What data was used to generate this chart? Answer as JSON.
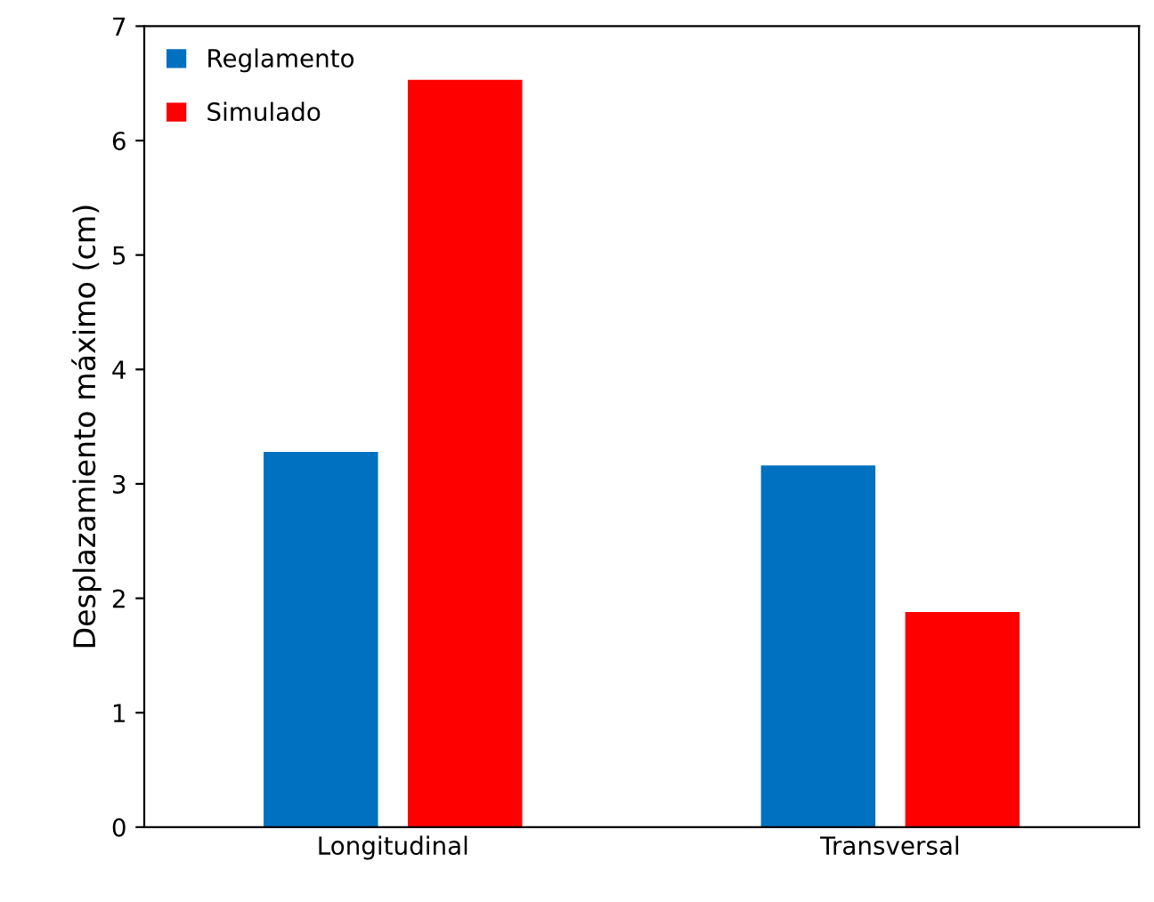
{
  "chart_data": {
    "type": "bar",
    "ylabel": "Desplazamiento máximo (cm)",
    "categories": [
      "Longitudinal",
      "Transversal"
    ],
    "series": [
      {
        "name": "Reglamento",
        "color": "#0070c0",
        "values": [
          3.28,
          3.16
        ]
      },
      {
        "name": "Simulado",
        "color": "#ff0000",
        "values": [
          6.53,
          1.88
        ]
      }
    ],
    "ylim": [
      0,
      7
    ],
    "yticks": [
      0,
      1,
      2,
      3,
      4,
      5,
      6,
      7
    ],
    "grid": false,
    "legend": "top left"
  }
}
